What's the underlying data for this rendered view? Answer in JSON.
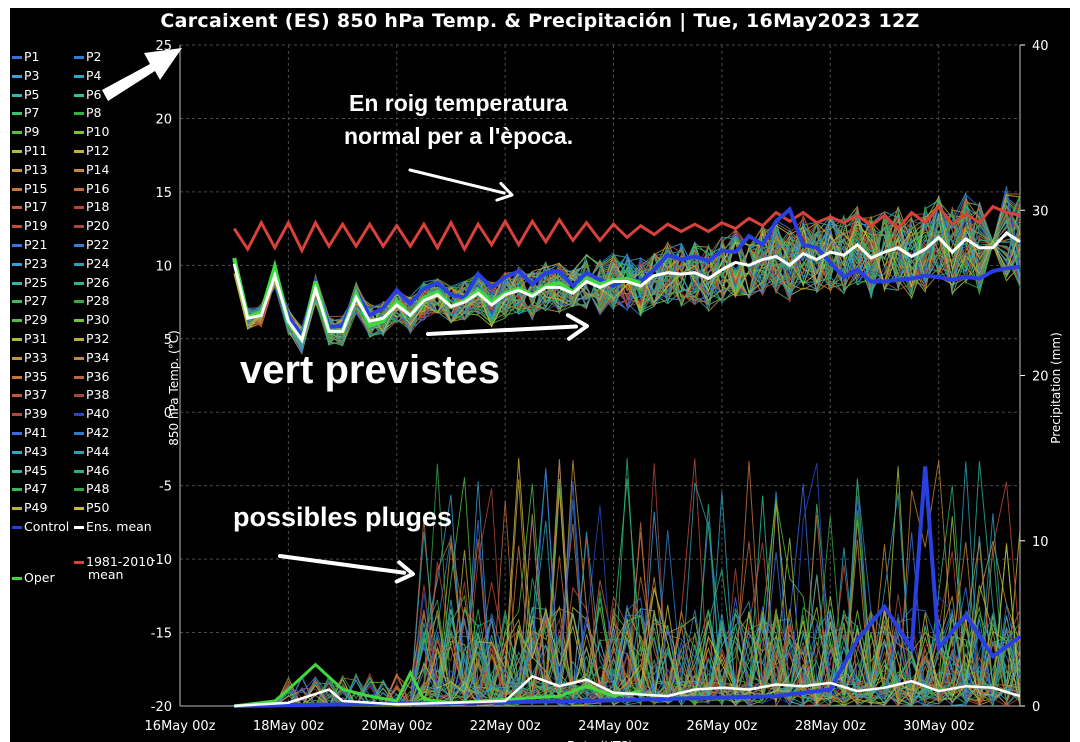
{
  "chart_data": {
    "type": "line",
    "title": "Carcaixent  (ES)  850 hPa Temp. & Precipitación | Tue, 16May2023 12Z",
    "ylabel": "850 hPa Temp. (°C)",
    "y2label": "Precipitation (mm)",
    "xlabel": "Date (UTC)",
    "ylim": [
      -20,
      25
    ],
    "y2lim": [
      0,
      40
    ],
    "yticks": [
      "25",
      "20",
      "15",
      "10",
      "5",
      "0",
      "-5",
      "-10",
      "-15",
      "-20"
    ],
    "y2ticks": [
      "40",
      "30",
      "20",
      "10",
      "0"
    ],
    "xticks": [
      "16May 00z",
      "18May 00z",
      "20May 00z",
      "22May 00z",
      "24May 00z",
      "26May 00z",
      "28May 00z",
      "30May 00z"
    ],
    "xlim_days": [
      16,
      31.5
    ],
    "grid": true,
    "legend_position": "left",
    "series": [
      {
        "name": "1981-2010 mean",
        "color": "#d9413a",
        "temperature": [
          [
            17.0,
            12.5
          ],
          [
            17.25,
            11.1
          ],
          [
            17.5,
            12.9
          ],
          [
            17.75,
            11.2
          ],
          [
            18.0,
            12.9
          ],
          [
            18.25,
            11.0
          ],
          [
            18.5,
            12.9
          ],
          [
            18.75,
            11.3
          ],
          [
            19.0,
            12.8
          ],
          [
            19.25,
            11.3
          ],
          [
            19.5,
            12.8
          ],
          [
            19.75,
            11.3
          ],
          [
            20.0,
            12.7
          ],
          [
            20.25,
            11.3
          ],
          [
            20.5,
            12.8
          ],
          [
            20.75,
            11.2
          ],
          [
            21.0,
            12.9
          ],
          [
            21.25,
            11.1
          ],
          [
            21.5,
            12.8
          ],
          [
            21.75,
            11.4
          ],
          [
            22.0,
            13.0
          ],
          [
            22.25,
            11.4
          ],
          [
            22.5,
            13.0
          ],
          [
            22.75,
            11.6
          ],
          [
            23.0,
            13.1
          ],
          [
            23.25,
            11.7
          ],
          [
            23.5,
            12.9
          ],
          [
            23.75,
            11.7
          ],
          [
            24.0,
            12.8
          ],
          [
            24.25,
            11.9
          ],
          [
            24.5,
            12.7
          ],
          [
            24.75,
            12.1
          ],
          [
            25.0,
            12.8
          ],
          [
            25.25,
            12.3
          ],
          [
            25.5,
            12.8
          ],
          [
            25.75,
            12.3
          ],
          [
            26.0,
            12.9
          ],
          [
            26.25,
            12.5
          ],
          [
            26.5,
            13.2
          ],
          [
            26.75,
            12.7
          ],
          [
            27.0,
            13.6
          ],
          [
            27.25,
            13.0
          ],
          [
            27.5,
            13.6
          ],
          [
            27.75,
            12.9
          ],
          [
            28.0,
            13.3
          ],
          [
            28.25,
            12.9
          ],
          [
            28.5,
            13.4
          ],
          [
            28.75,
            12.7
          ],
          [
            29.0,
            13.4
          ],
          [
            29.25,
            12.5
          ],
          [
            29.5,
            13.6
          ],
          [
            29.75,
            12.9
          ],
          [
            30.0,
            14.0
          ],
          [
            30.25,
            12.8
          ],
          [
            30.5,
            13.5
          ],
          [
            30.75,
            12.9
          ],
          [
            31.0,
            14.0
          ],
          [
            31.25,
            13.6
          ],
          [
            31.5,
            13.4
          ]
        ]
      },
      {
        "name": "Ens. mean",
        "color": "#ffffff",
        "temperature": [
          [
            17.0,
            10.1
          ],
          [
            17.25,
            6.4
          ],
          [
            17.5,
            6.6
          ],
          [
            17.75,
            9.3
          ],
          [
            18.0,
            6.2
          ],
          [
            18.25,
            4.9
          ],
          [
            18.5,
            8.4
          ],
          [
            18.75,
            5.5
          ],
          [
            19.0,
            5.5
          ],
          [
            19.25,
            7.8
          ],
          [
            19.5,
            6.2
          ],
          [
            19.75,
            6.4
          ],
          [
            20.0,
            7.3
          ],
          [
            20.25,
            6.6
          ],
          [
            20.5,
            7.6
          ],
          [
            20.75,
            8.0
          ],
          [
            21.0,
            7.2
          ],
          [
            21.25,
            7.5
          ],
          [
            21.5,
            8.1
          ],
          [
            21.75,
            7.3
          ],
          [
            22.0,
            8.0
          ],
          [
            22.25,
            8.3
          ],
          [
            22.5,
            7.9
          ],
          [
            22.75,
            8.5
          ],
          [
            23.0,
            8.5
          ],
          [
            23.25,
            8.1
          ],
          [
            23.5,
            8.9
          ],
          [
            23.75,
            8.5
          ],
          [
            24.0,
            8.9
          ],
          [
            24.25,
            8.9
          ],
          [
            24.5,
            8.6
          ],
          [
            24.75,
            9.3
          ],
          [
            25.0,
            9.5
          ],
          [
            25.25,
            9.4
          ],
          [
            25.5,
            9.5
          ],
          [
            25.75,
            9.1
          ],
          [
            26.0,
            9.7
          ],
          [
            26.25,
            10.2
          ],
          [
            26.5,
            10.0
          ],
          [
            26.75,
            10.4
          ],
          [
            27.0,
            10.6
          ],
          [
            27.25,
            10.0
          ],
          [
            27.5,
            10.8
          ],
          [
            27.75,
            10.4
          ],
          [
            28.0,
            10.9
          ],
          [
            28.25,
            10.7
          ],
          [
            28.5,
            11.4
          ],
          [
            28.75,
            10.5
          ],
          [
            29.0,
            10.9
          ],
          [
            29.25,
            11.2
          ],
          [
            29.5,
            10.6
          ],
          [
            29.75,
            11.1
          ],
          [
            30.0,
            11.9
          ],
          [
            30.25,
            10.9
          ],
          [
            30.5,
            11.8
          ],
          [
            30.75,
            11.2
          ],
          [
            31.0,
            11.2
          ],
          [
            31.25,
            12.2
          ],
          [
            31.5,
            11.6
          ]
        ],
        "precipitation": [
          [
            17,
            0
          ],
          [
            18,
            0.2
          ],
          [
            18.75,
            1.0
          ],
          [
            19,
            0.3
          ],
          [
            20,
            0.1
          ],
          [
            21,
            0.2
          ],
          [
            22,
            0.3
          ],
          [
            22.5,
            1.8
          ],
          [
            23,
            1.2
          ],
          [
            23.5,
            1.6
          ],
          [
            24,
            0.8
          ],
          [
            25,
            0.6
          ],
          [
            25.5,
            1.0
          ],
          [
            26,
            1.1
          ],
          [
            26.5,
            1.0
          ],
          [
            27,
            1.3
          ],
          [
            27.5,
            1.2
          ],
          [
            28,
            1.4
          ],
          [
            28.5,
            0.9
          ],
          [
            29,
            1.1
          ],
          [
            29.5,
            1.5
          ],
          [
            30,
            0.9
          ],
          [
            30.5,
            1.2
          ],
          [
            31,
            1.1
          ],
          [
            31.5,
            0.6
          ]
        ]
      },
      {
        "name": "Control",
        "color": "#2a3fe0",
        "temperature": [
          [
            17.0,
            10.4
          ],
          [
            17.25,
            6.6
          ],
          [
            17.5,
            6.7
          ],
          [
            17.75,
            9.6
          ],
          [
            18.0,
            6.5
          ],
          [
            18.25,
            5.2
          ],
          [
            18.5,
            8.8
          ],
          [
            18.75,
            5.8
          ],
          [
            19.0,
            5.9
          ],
          [
            19.25,
            8.2
          ],
          [
            19.5,
            6.6
          ],
          [
            19.75,
            7.1
          ],
          [
            20.0,
            8.3
          ],
          [
            20.25,
            7.4
          ],
          [
            20.5,
            8.4
          ],
          [
            20.75,
            8.8
          ],
          [
            21.0,
            8.0
          ],
          [
            21.25,
            7.8
          ],
          [
            21.5,
            9.4
          ],
          [
            21.75,
            8.5
          ],
          [
            22.0,
            9.2
          ],
          [
            22.25,
            9.6
          ],
          [
            22.5,
            8.7
          ],
          [
            22.75,
            9.5
          ],
          [
            23.0,
            9.6
          ],
          [
            23.25,
            8.6
          ],
          [
            23.5,
            9.5
          ],
          [
            23.75,
            9.0
          ],
          [
            24.0,
            8.6
          ],
          [
            24.25,
            9.1
          ],
          [
            24.5,
            8.9
          ],
          [
            24.75,
            9.7
          ],
          [
            25.0,
            10.7
          ],
          [
            25.25,
            10.4
          ],
          [
            25.5,
            10.6
          ],
          [
            25.75,
            10.3
          ],
          [
            26.0,
            11.0
          ],
          [
            26.25,
            10.9
          ],
          [
            26.5,
            12.0
          ],
          [
            26.75,
            11.4
          ],
          [
            27.0,
            13.0
          ],
          [
            27.25,
            13.8
          ],
          [
            27.5,
            11.4
          ],
          [
            27.75,
            11.2
          ],
          [
            28.0,
            10.2
          ],
          [
            28.25,
            9.2
          ],
          [
            28.5,
            9.7
          ],
          [
            28.75,
            8.9
          ],
          [
            29.0,
            8.9
          ],
          [
            29.25,
            9.0
          ],
          [
            29.5,
            9.1
          ],
          [
            29.75,
            9.3
          ],
          [
            30.0,
            9.2
          ],
          [
            30.25,
            9.0
          ],
          [
            30.5,
            9.2
          ],
          [
            30.75,
            9.1
          ],
          [
            31.0,
            9.6
          ],
          [
            31.25,
            9.8
          ],
          [
            31.5,
            9.9
          ]
        ],
        "precipitation": [
          [
            17,
            0
          ],
          [
            23.5,
            0.3
          ],
          [
            27,
            0.6
          ],
          [
            28,
            1.0
          ],
          [
            28.5,
            4.0
          ],
          [
            29,
            6.0
          ],
          [
            29.5,
            3.5
          ],
          [
            29.75,
            14.5
          ],
          [
            30,
            3.5
          ],
          [
            30.5,
            5.5
          ],
          [
            31,
            3.0
          ],
          [
            31.5,
            4.2
          ]
        ]
      },
      {
        "name": "Oper",
        "color": "#3fd93f",
        "temperature": [
          [
            17.0,
            10.5
          ],
          [
            17.25,
            6.5
          ],
          [
            17.5,
            6.8
          ],
          [
            17.75,
            9.9
          ],
          [
            18.0,
            6.1
          ],
          [
            18.25,
            4.9
          ],
          [
            18.5,
            8.9
          ],
          [
            18.75,
            5.5
          ],
          [
            19.0,
            5.5
          ],
          [
            19.25,
            8.1
          ],
          [
            19.5,
            5.9
          ],
          [
            19.75,
            6.2
          ],
          [
            20.0,
            7.6
          ],
          [
            20.25,
            6.6
          ],
          [
            20.5,
            7.8
          ],
          [
            20.75,
            8.2
          ],
          [
            21.0,
            7.2
          ],
          [
            21.25,
            7.6
          ],
          [
            21.5,
            8.3
          ],
          [
            21.75,
            7.5
          ],
          [
            22.0,
            8.1
          ],
          [
            22.25,
            8.4
          ],
          [
            22.5,
            8.0
          ],
          [
            22.75,
            8.6
          ],
          [
            23.0,
            8.8
          ],
          [
            23.25,
            8.2
          ],
          [
            23.5,
            9.1
          ],
          [
            23.75,
            8.7
          ],
          [
            24.0,
            9.0
          ],
          [
            24.25,
            9.1
          ],
          [
            24.5,
            8.8
          ]
        ],
        "precipitation": [
          [
            17,
            0
          ],
          [
            17.75,
            0.3
          ],
          [
            18,
            1.0
          ],
          [
            18.5,
            2.5
          ],
          [
            19,
            1.0
          ],
          [
            19.5,
            0.6
          ],
          [
            20,
            0.3
          ],
          [
            20.25,
            2.0
          ],
          [
            20.5,
            0.4
          ],
          [
            21,
            0.2
          ],
          [
            22,
            0.4
          ],
          [
            22.5,
            0.5
          ],
          [
            23,
            0.6
          ],
          [
            23.5,
            1.2
          ],
          [
            24,
            0.6
          ],
          [
            24.5,
            0.9
          ]
        ]
      }
    ],
    "legend": [
      "P1",
      "P2",
      "P3",
      "P4",
      "P5",
      "P6",
      "P7",
      "P8",
      "P9",
      "P10",
      "P11",
      "P12",
      "P13",
      "P14",
      "P15",
      "P16",
      "P17",
      "P18",
      "P19",
      "P20",
      "P21",
      "P22",
      "P23",
      "P24",
      "P25",
      "P26",
      "P27",
      "P28",
      "P29",
      "P30",
      "P31",
      "P32",
      "P33",
      "P34",
      "P35",
      "P36",
      "P37",
      "P38",
      "P39",
      "P40",
      "P41",
      "P42",
      "P43",
      "P44",
      "P45",
      "P46",
      "P47",
      "P48",
      "P49",
      "P50",
      "Control",
      "Ens. mean",
      "1981-2010 mean",
      "Oper"
    ],
    "member_colors": [
      "#3a6fd8",
      "#2f7fd0",
      "#3b9fe0",
      "#2aa7c9",
      "#34b7b2",
      "#2fc097",
      "#3fc070",
      "#33b04c",
      "#54c23a",
      "#7ac434",
      "#a6c33a",
      "#c2b13a",
      "#c99a34",
      "#c98636",
      "#c9753c",
      "#bf6a3d",
      "#c85a3e",
      "#b3453a",
      "#c34a3a",
      "#b0443a",
      "#3f6fe0",
      "#3c7ecf",
      "#38a0d8",
      "#2aa0b5",
      "#35b3a5",
      "#2fb582",
      "#40b860",
      "#3aa848",
      "#52bd3e",
      "#78c238",
      "#a3c23a",
      "#b8ac38",
      "#c4973a",
      "#c48536",
      "#c4733d",
      "#b8693c",
      "#c05a3e",
      "#a8473a",
      "#b8463a",
      "#2848c8",
      "#3d6bd8",
      "#3377c6",
      "#35a2c8",
      "#2c9fb0",
      "#30b29b",
      "#2dae7a",
      "#3db35a",
      "#38a448",
      "#b9b53a",
      "#cabb3c"
    ]
  },
  "legend_labels": {
    "p": [
      "P1",
      "P2",
      "P3",
      "P4",
      "P5",
      "P6",
      "P7",
      "P8",
      "P9",
      "P10",
      "P11",
      "P12",
      "P13",
      "P14",
      "P15",
      "P16",
      "P17",
      "P18",
      "P19",
      "P20",
      "P21",
      "P22",
      "P23",
      "P24",
      "P25",
      "P26",
      "P27",
      "P28",
      "P29",
      "P30",
      "P31",
      "P32",
      "P33",
      "P34",
      "P35",
      "P36",
      "P37",
      "P38",
      "P39",
      "P40",
      "P41",
      "P42",
      "P43",
      "P44",
      "P45",
      "P46",
      "P47",
      "P48",
      "P49",
      "P50"
    ],
    "control": "Control",
    "ens_mean": "Ens. mean",
    "clim_line1": "1981-2010",
    "clim_line2": "mean",
    "oper": "Oper"
  },
  "annotations": {
    "red_note_line1": "En roig temperatura",
    "red_note_line2": "normal per a l'època.",
    "green_note": "vert previstes",
    "rain_note": "possibles  pluges"
  },
  "colors": {
    "background": "#000000",
    "grid": "#4a4a4a",
    "text": "#ffffff",
    "climatology": "#d9413a",
    "ens_mean": "#ffffff",
    "control": "#2a3fe0",
    "oper": "#3fd93f"
  }
}
